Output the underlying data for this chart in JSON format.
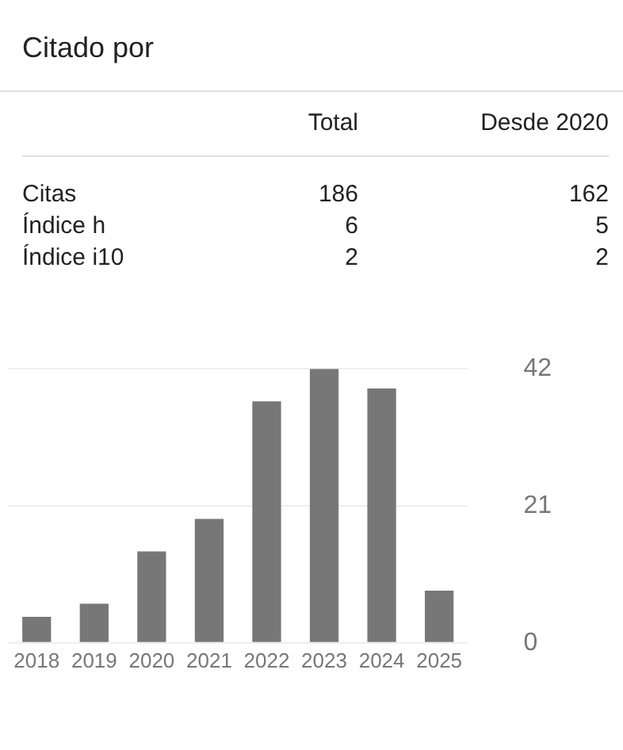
{
  "chart_data": {
    "type": "bar",
    "title": "Citado por",
    "annotations": [
      "Total",
      "Desde 2020",
      "Citas",
      "186",
      "162",
      "Índice h",
      "6",
      "5",
      "Índice i10",
      "2",
      "2"
    ],
    "categories": [
      "2018",
      "2019",
      "2020",
      "2021",
      "2022",
      "2023",
      "2024",
      "2025"
    ],
    "values": [
      4,
      6,
      14,
      19,
      37,
      42,
      39,
      8
    ],
    "color": "#777777",
    "ylim": [
      0,
      42
    ],
    "yticks": [
      0,
      21,
      42
    ],
    "grid": "y"
  }
}
